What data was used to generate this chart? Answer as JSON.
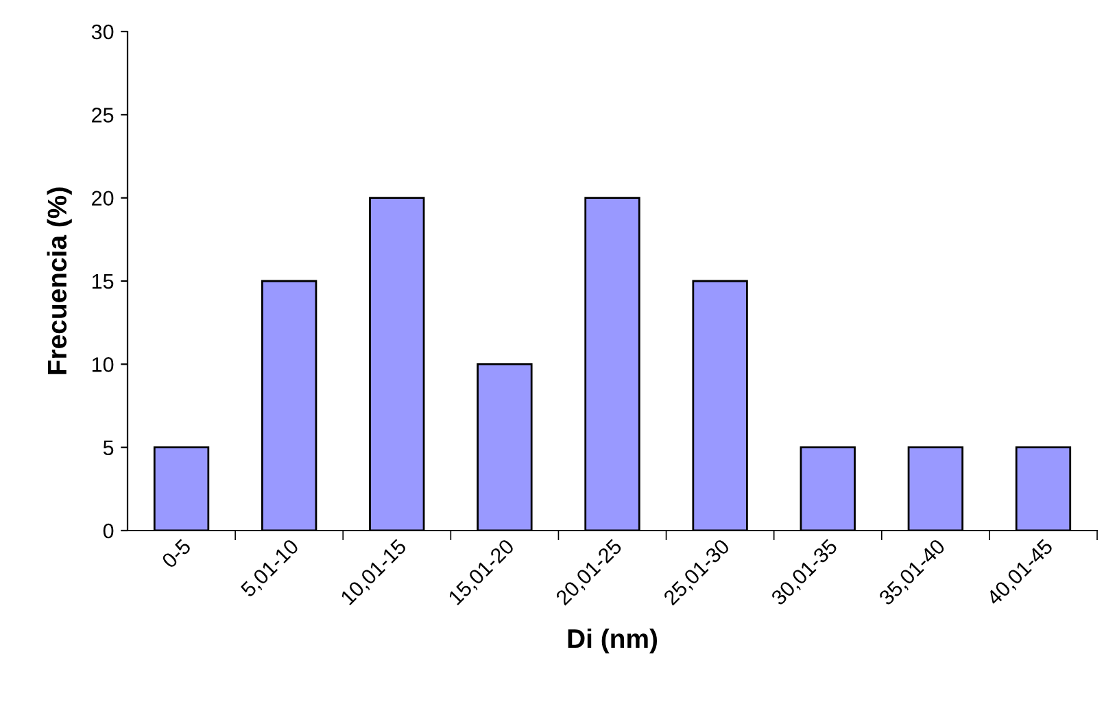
{
  "chart_data": {
    "type": "bar",
    "xlabel": "Di (nm)",
    "ylabel": "Frecuencia (%)",
    "categories": [
      "0-5",
      "5,01-10",
      "10,01-15",
      "15,01-20",
      "20,01-25",
      "25,01-30",
      "30,01-35",
      "35,01-40",
      "40,01-45"
    ],
    "values": [
      5,
      15,
      20,
      10,
      20,
      15,
      5,
      5,
      5
    ],
    "color": "#9999ff",
    "ylim": [
      0,
      30
    ],
    "yticks": [
      0,
      5,
      10,
      15,
      20,
      25,
      30
    ],
    "grid": false,
    "legend": false
  }
}
